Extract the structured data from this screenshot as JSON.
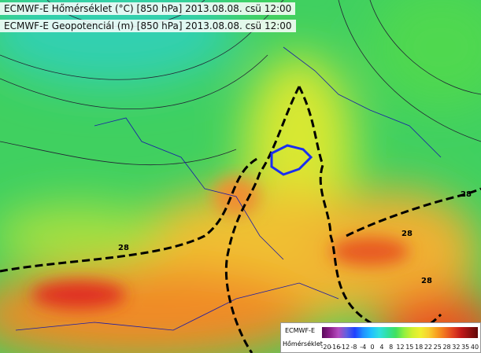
{
  "header": {
    "line1": "ECMWF-E Hőmérséklet (°C) [850 hPa] 2013.08.08. csü 12:00",
    "line2": "ECMWF-E Geopotenciál (m) [850 hPa] 2013.08.08. csü 12:00"
  },
  "legend": {
    "model": "ECMWF-E",
    "variable": "Hőmérséklet",
    "labels": [
      "-20",
      "-16",
      "-12",
      "-8",
      "-4",
      "0",
      "4",
      "8",
      "12",
      "15",
      "18",
      "22",
      "25",
      "28",
      "32",
      "35",
      "40"
    ]
  },
  "contours": [
    "28",
    "28",
    "28",
    "28"
  ]
}
